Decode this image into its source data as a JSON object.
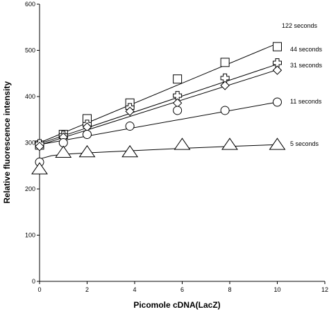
{
  "chart_data": {
    "type": "scatter",
    "title": "",
    "xlabel": "Picomole cDNA(LacZ)",
    "ylabel": "Relative fluorescence intensity",
    "xlim": [
      0,
      12
    ],
    "ylim": [
      0,
      600
    ],
    "xticks": [
      0,
      2,
      4,
      6,
      8,
      10,
      12
    ],
    "yticks": [
      0,
      100,
      200,
      300,
      400,
      500,
      600
    ],
    "grid": false,
    "legend": "direct labels at line ends",
    "series": [
      {
        "name": "122 seconds",
        "marker": "square",
        "x": [
          0,
          1,
          2,
          3.8,
          5.8,
          7.8,
          10
        ],
        "y": [
          295,
          318,
          352,
          386,
          438,
          474,
          508
        ],
        "fit": [
          [
            0,
            300
          ],
          [
            10,
            515
          ]
        ]
      },
      {
        "name": "44 seconds",
        "marker": "cross",
        "x": [
          0,
          1,
          2,
          3.8,
          5.8,
          7.8,
          10
        ],
        "y": [
          298,
          316,
          340,
          376,
          402,
          440,
          473
        ],
        "fit": [
          [
            0,
            298
          ],
          [
            10,
            470
          ]
        ]
      },
      {
        "name": "31 seconds",
        "marker": "diamond",
        "x": [
          0,
          1,
          2,
          3.8,
          5.8,
          7.8,
          10
        ],
        "y": [
          292,
          312,
          334,
          368,
          386,
          424,
          457
        ],
        "fit": [
          [
            0,
            295
          ],
          [
            10,
            458
          ]
        ]
      },
      {
        "name": "11 seconds",
        "marker": "circle",
        "x": [
          0,
          1,
          2,
          3.8,
          5.8,
          7.8,
          10
        ],
        "y": [
          258,
          300,
          318,
          336,
          370,
          370,
          388
        ],
        "fit": [
          [
            0,
            296
          ],
          [
            10,
            388
          ]
        ]
      },
      {
        "name": "5 seconds",
        "marker": "triangle",
        "x": [
          0,
          1,
          2,
          3.8,
          6,
          8,
          10
        ],
        "y": [
          243,
          279,
          280,
          280,
          296,
          296,
          296
        ],
        "fit_curve": [
          [
            0,
            265
          ],
          [
            0.5,
            272
          ],
          [
            1,
            275
          ],
          [
            2,
            278
          ],
          [
            4,
            283
          ],
          [
            6,
            288
          ],
          [
            8,
            292
          ],
          [
            10,
            296
          ]
        ]
      }
    ]
  }
}
